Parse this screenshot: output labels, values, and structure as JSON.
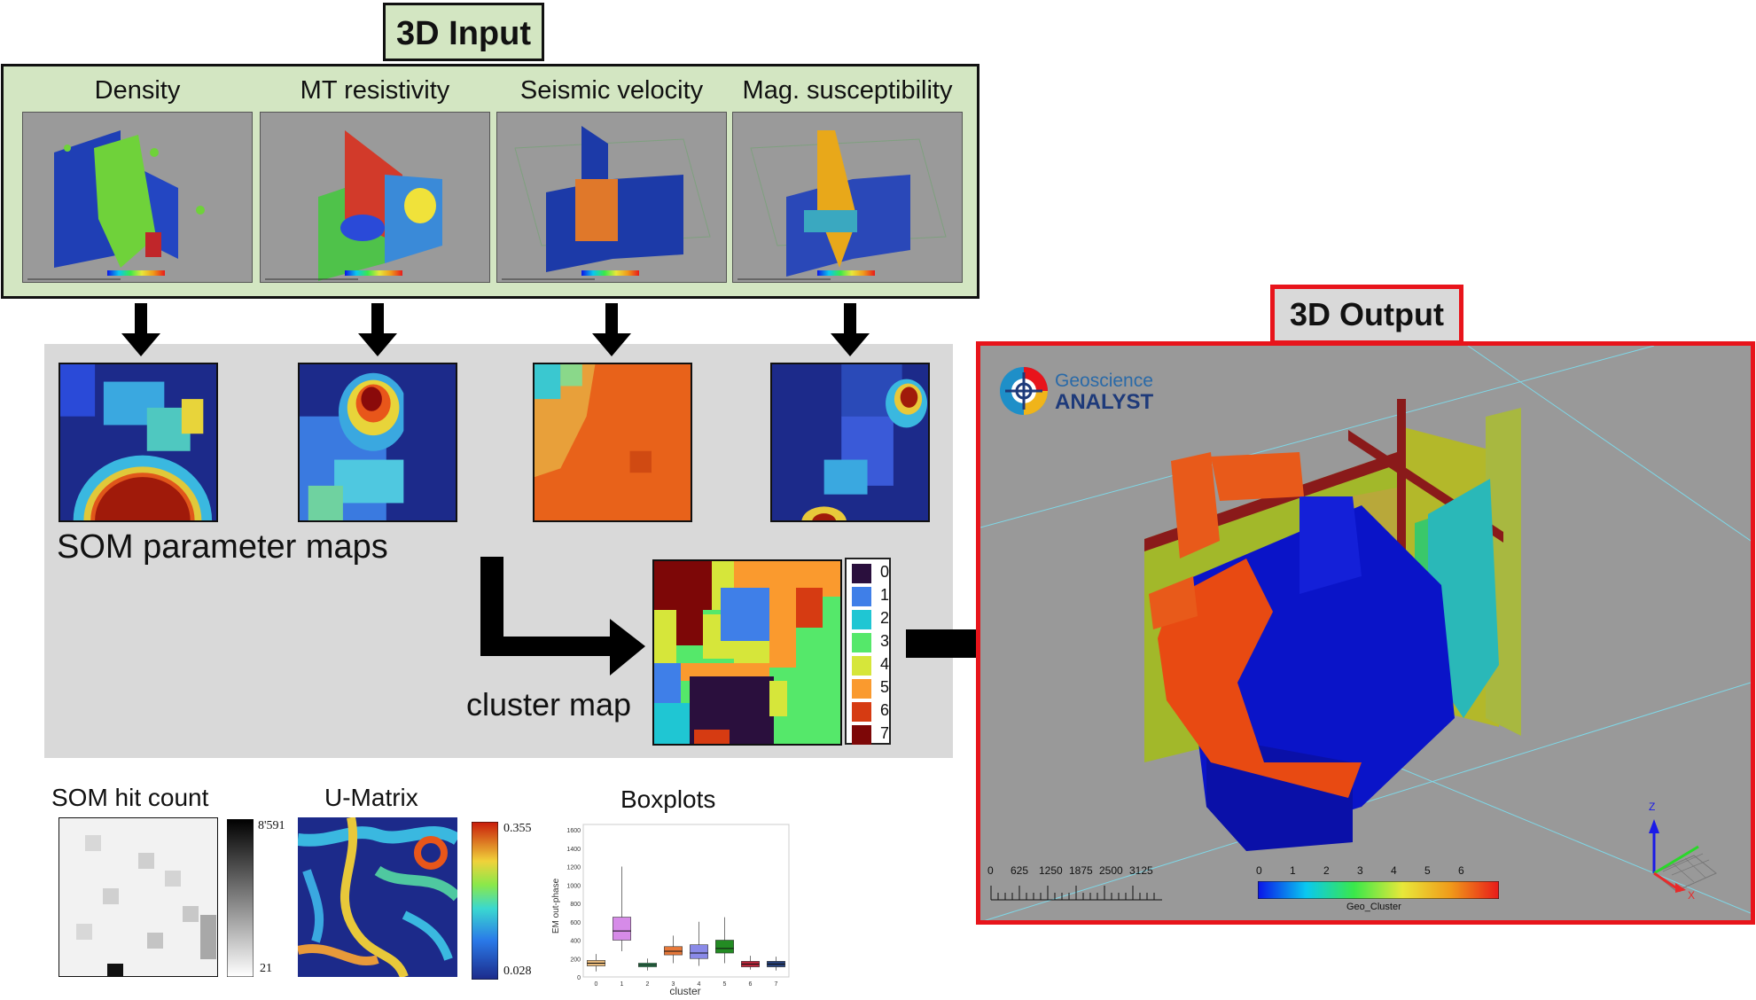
{
  "input_section": {
    "title": "3D Input",
    "panels": [
      {
        "label": "Density"
      },
      {
        "label": "MT resistivity"
      },
      {
        "label": "Seismic velocity"
      },
      {
        "label": "Mag. susceptibility"
      }
    ],
    "logo_text": "Geoscience ANALYST"
  },
  "som_section": {
    "parameter_maps_label": "SOM parameter maps",
    "cluster_map_label": "cluster map",
    "cluster_legend": [
      "0",
      "1",
      "2",
      "3",
      "4",
      "5",
      "6",
      "7"
    ],
    "cluster_colors": [
      "#2a0f3d",
      "#3f7fe8",
      "#1fc6d3",
      "#55e86a",
      "#d6e63a",
      "#fa9a2e",
      "#d63b12",
      "#7d0707"
    ]
  },
  "bottom_section": {
    "hit_count_label": "SOM hit count",
    "hit_count_max": "8'591",
    "hit_count_min": "21",
    "umatrix_label": "U-Matrix",
    "umatrix_max": "0.355",
    "umatrix_min": "0.028",
    "boxplots_label": "Boxplots",
    "boxplot_ylabel": "EM out-phase",
    "boxplot_xlabel": "cluster",
    "boxplot_yticks": [
      "0",
      "200",
      "400",
      "600",
      "800",
      "1000",
      "1200",
      "1400",
      "1600"
    ],
    "boxplot_xticks": [
      "0",
      "1",
      "2",
      "3",
      "4",
      "5",
      "6",
      "7"
    ]
  },
  "output_section": {
    "title": "3D Output",
    "logo_line1": "Geoscience",
    "logo_line2": "ANALYST",
    "scale_ticks": [
      "0",
      "625",
      "1250",
      "1875",
      "2500",
      "3125"
    ],
    "colorbar_ticks": [
      "0",
      "1",
      "2",
      "3",
      "4",
      "5",
      "6"
    ],
    "colorbar_label": "Geo_Cluster",
    "axis_z": "Z",
    "axis_x": "X"
  },
  "chart_data": {
    "type": "box",
    "title": "Boxplots",
    "xlabel": "cluster",
    "ylabel": "EM out-phase",
    "ylim": [
      0,
      1600
    ],
    "categories": [
      "0",
      "1",
      "2",
      "3",
      "4",
      "5",
      "6",
      "7"
    ],
    "boxes": [
      {
        "cluster": "0",
        "q1": 120,
        "median": 150,
        "q3": 180,
        "whisker_low": 60,
        "whisker_high": 250,
        "color": "#e6b87a"
      },
      {
        "cluster": "1",
        "q1": 400,
        "median": 500,
        "q3": 650,
        "whisker_low": 280,
        "whisker_high": 1200,
        "color": "#d68be8"
      },
      {
        "cluster": "2",
        "q1": 110,
        "median": 130,
        "q3": 150,
        "whisker_low": 70,
        "whisker_high": 200,
        "color": "#2e8b57"
      },
      {
        "cluster": "3",
        "q1": 240,
        "median": 280,
        "q3": 330,
        "whisker_low": 150,
        "whisker_high": 450,
        "color": "#e8793a"
      },
      {
        "cluster": "4",
        "q1": 200,
        "median": 260,
        "q3": 350,
        "whisker_low": 120,
        "whisker_high": 600,
        "color": "#8a8ae8"
      },
      {
        "cluster": "5",
        "q1": 260,
        "median": 310,
        "q3": 400,
        "whisker_low": 150,
        "whisker_high": 650,
        "color": "#238b23"
      },
      {
        "cluster": "6",
        "q1": 110,
        "median": 140,
        "q3": 170,
        "whisker_low": 80,
        "whisker_high": 230,
        "color": "#b8263a"
      },
      {
        "cluster": "7",
        "q1": 110,
        "median": 140,
        "q3": 170,
        "whisker_low": 70,
        "whisker_high": 220,
        "color": "#26407a"
      }
    ]
  }
}
